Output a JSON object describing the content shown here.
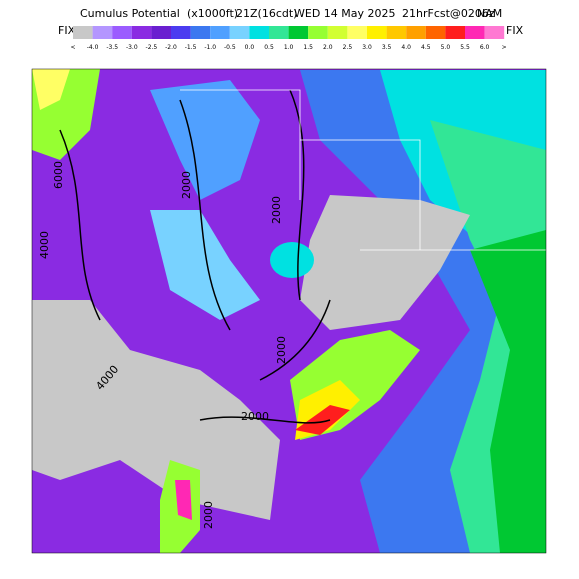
{
  "header": {
    "title_parts": [
      "Cumulus Potential",
      "(x1000ft)",
      "21Z(16cdt)",
      "WED 14 May 2025",
      "21hrFcst@0206z",
      "NAM"
    ],
    "fix_left": "FIX",
    "fix_right": "FIX"
  },
  "colorbar": {
    "labels": [
      "<",
      "-4.0",
      "-3.5",
      "-3.0",
      "-2.5",
      "-2.0",
      "-1.5",
      "-1.0",
      "-0.5",
      "0.0",
      "0.5",
      "1.0",
      "1.5",
      "2.0",
      "2.5",
      "3.0",
      "3.5",
      "4.0",
      "4.5",
      "5.0",
      "5.5",
      "6.0",
      ">"
    ],
    "colors": [
      "#c8c8c8",
      "#b496ff",
      "#9b5cff",
      "#8a2be2",
      "#6a1fd0",
      "#4b3cf0",
      "#3c78f0",
      "#50a0ff",
      "#78d2ff",
      "#00e1e1",
      "#32e696",
      "#00c832",
      "#96ff32",
      "#d2ff32",
      "#ffff64",
      "#fff000",
      "#ffc800",
      "#ffa000",
      "#ff6400",
      "#ff1e1e",
      "#ff28b4",
      "#ff78d2"
    ]
  },
  "map": {
    "contour_labels": [
      "6000",
      "4000",
      "2000",
      "2000",
      "2000",
      "4000",
      "2000",
      "2000"
    ]
  }
}
